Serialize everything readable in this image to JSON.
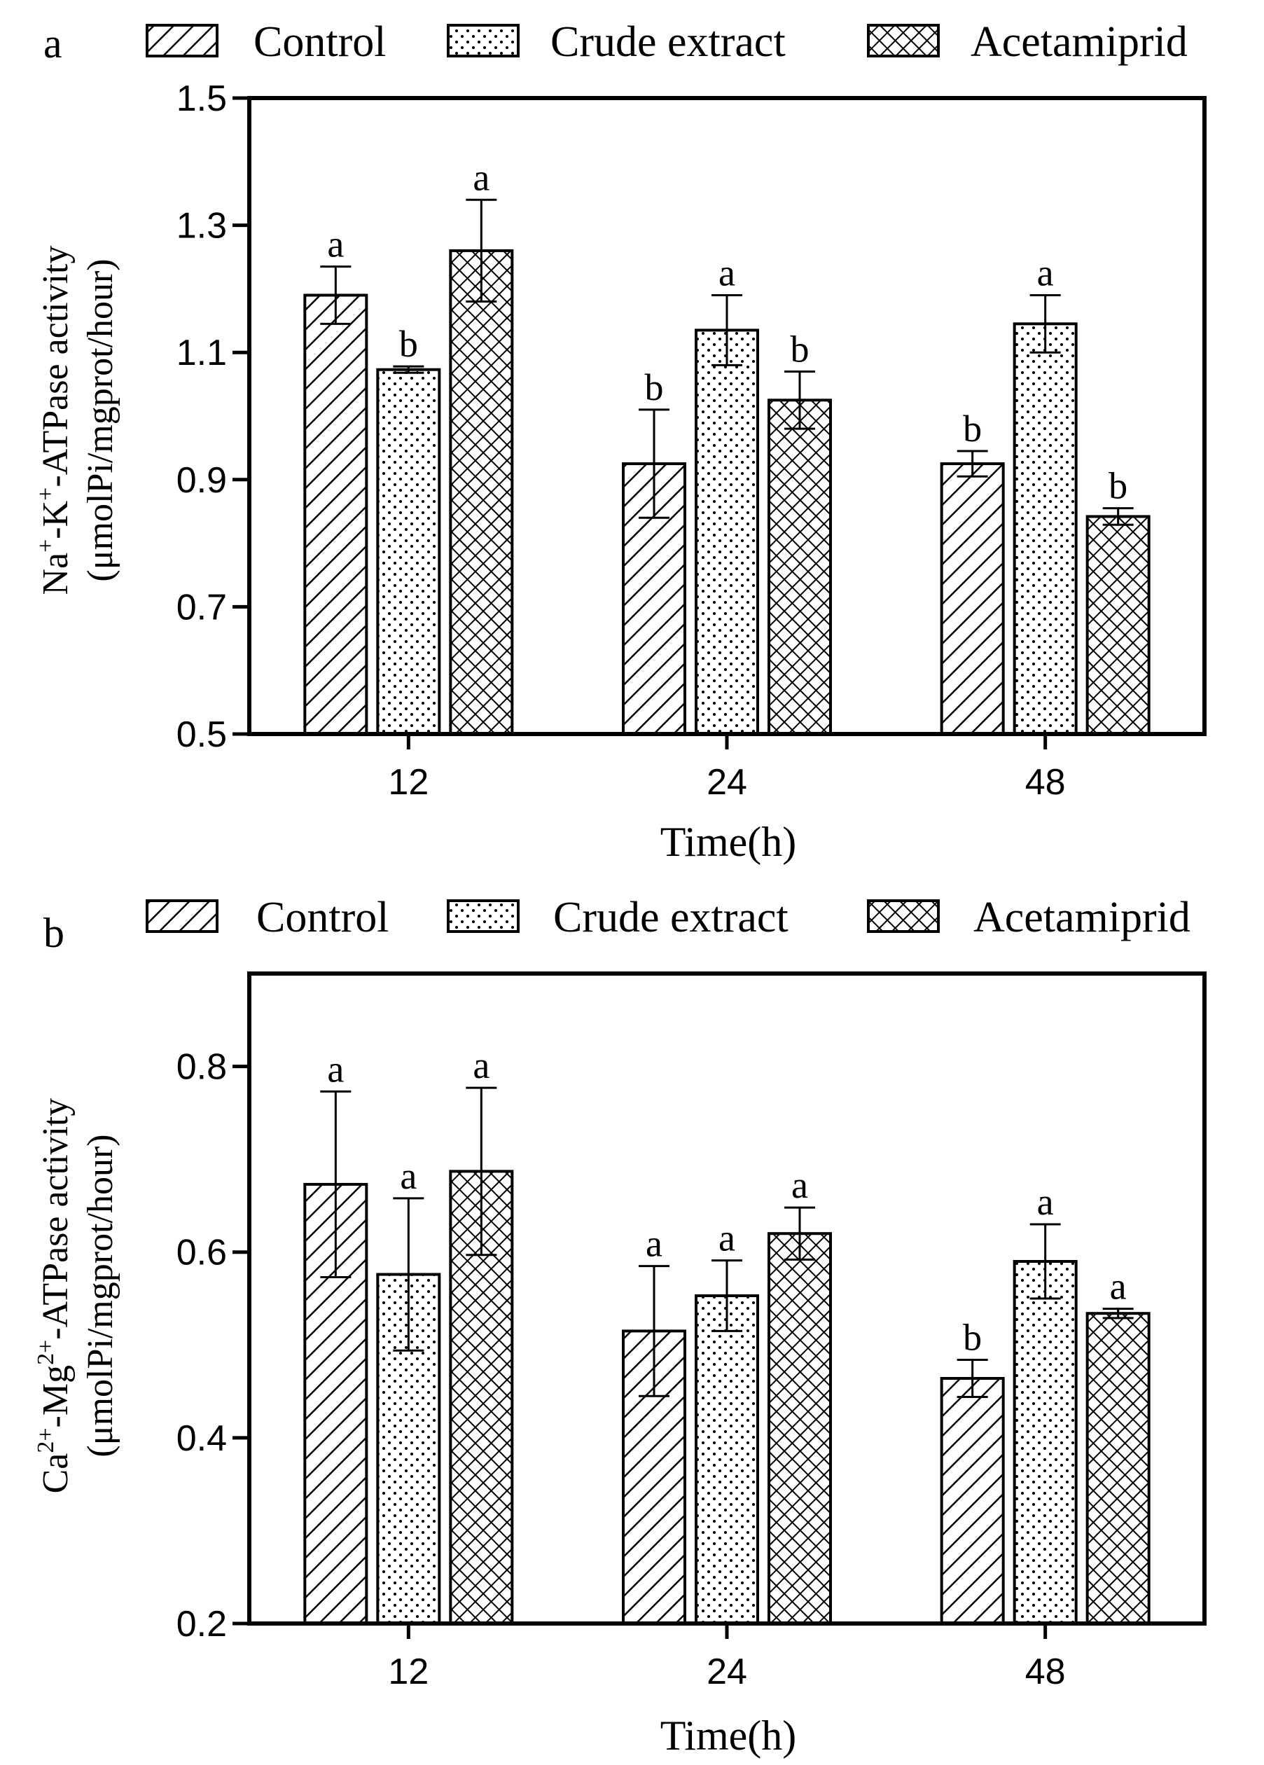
{
  "figure_labels": [
    "a",
    "b"
  ],
  "colors": {
    "ink": "#000000",
    "fill": "#ffffff"
  },
  "legend": {
    "items": [
      {
        "label": "Control",
        "pattern": "hatch-diagonal"
      },
      {
        "label": "Crude extract",
        "pattern": "dots"
      },
      {
        "label": "Acetamiprid",
        "pattern": "crosshatch"
      }
    ]
  },
  "chart_data": [
    {
      "type": "bar",
      "panel": "a",
      "xlabel": "Time(h)",
      "ylabel_line1_parts": [
        "Na",
        "+",
        "-K",
        "+",
        "-ATPase activity"
      ],
      "ylabel_line2": "(μmolPi/mgprot/hour)",
      "categories": [
        "12",
        "24",
        "48"
      ],
      "ylim": [
        0.5,
        1.5
      ],
      "yticks": [
        "0.5",
        "0.7",
        "0.9",
        "1.1",
        "1.3",
        "1.5"
      ],
      "series": [
        {
          "name": "Control",
          "values": [
            1.19,
            0.925,
            0.925
          ],
          "errors": [
            0.045,
            0.085,
            0.02
          ],
          "letters": [
            "a",
            "b",
            "b"
          ]
        },
        {
          "name": "Crude extract",
          "values": [
            1.073,
            1.135,
            1.145
          ],
          "errors": [
            0.005,
            0.055,
            0.045
          ],
          "letters": [
            "b",
            "a",
            "a"
          ]
        },
        {
          "name": "Acetamiprid",
          "values": [
            1.26,
            1.025,
            0.842
          ],
          "errors": [
            0.08,
            0.045,
            0.013
          ],
          "letters": [
            "a",
            "b",
            "b"
          ]
        }
      ]
    },
    {
      "type": "bar",
      "panel": "b",
      "xlabel": "Time(h)",
      "ylabel_line1_parts": [
        "Ca",
        "2+",
        "-Mg",
        "2+",
        "-ATPase activity"
      ],
      "ylabel_line2": "(μmolPi/mgprot/hour)",
      "categories": [
        "12",
        "24",
        "48"
      ],
      "ylim": [
        0.2,
        0.9
      ],
      "yticks": [
        "0.2",
        "0.4",
        "0.6",
        "0.8"
      ],
      "series": [
        {
          "name": "Control",
          "values": [
            0.673,
            0.515,
            0.464
          ],
          "errors": [
            0.1,
            0.07,
            0.02
          ],
          "letters": [
            "a",
            "a",
            "b"
          ]
        },
        {
          "name": "Crude extract",
          "values": [
            0.576,
            0.553,
            0.59
          ],
          "errors": [
            0.082,
            0.038,
            0.04
          ],
          "letters": [
            "a",
            "a",
            "a"
          ]
        },
        {
          "name": "Acetamiprid",
          "values": [
            0.687,
            0.62,
            0.534
          ],
          "errors": [
            0.09,
            0.028,
            0.005
          ],
          "letters": [
            "a",
            "a",
            "a"
          ]
        }
      ]
    }
  ]
}
